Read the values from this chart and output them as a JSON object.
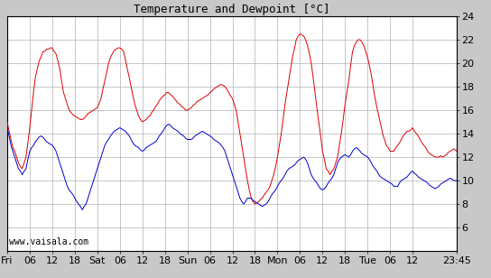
{
  "title": "Temperature and Dewpoint [°C]",
  "watermark": "www.vaisala.com",
  "ylim": [
    4,
    24
  ],
  "yticks": [
    6,
    8,
    10,
    12,
    14,
    16,
    18,
    20,
    22,
    24
  ],
  "x_tick_labels": [
    "Fri",
    "06",
    "12",
    "18",
    "Sat",
    "06",
    "12",
    "18",
    "Sun",
    "06",
    "12",
    "18",
    "Mon",
    "06",
    "12",
    "18",
    "Tue",
    "06",
    "12",
    "23:45"
  ],
  "x_tick_positions": [
    0,
    6,
    12,
    18,
    24,
    30,
    36,
    42,
    48,
    54,
    60,
    66,
    72,
    78,
    84,
    90,
    96,
    102,
    108,
    119.75
  ],
  "x_total_hours": 119.75,
  "plot_bg_color": "#ffffff",
  "fig_bg_color": "#c8c8c8",
  "grid_color": "#b0b0b0",
  "red_color": "#dd0000",
  "blue_color": "#0000cc",
  "title_fontsize": 9,
  "tick_fontsize": 8,
  "watermark_fontsize": 7,
  "red_data": [
    [
      0,
      15.0
    ],
    [
      0.5,
      14.2
    ],
    [
      1,
      13.5
    ],
    [
      1.5,
      12.8
    ],
    [
      2,
      12.5
    ],
    [
      2.5,
      12.0
    ],
    [
      3,
      11.5
    ],
    [
      3.5,
      11.2
    ],
    [
      4,
      11.0
    ],
    [
      4.5,
      11.5
    ],
    [
      5,
      12.0
    ],
    [
      5.5,
      13.2
    ],
    [
      6,
      14.5
    ],
    [
      6.5,
      16.0
    ],
    [
      7,
      17.5
    ],
    [
      7.5,
      18.8
    ],
    [
      8,
      19.5
    ],
    [
      8.5,
      20.2
    ],
    [
      9,
      20.5
    ],
    [
      9.5,
      21.0
    ],
    [
      10,
      21.0
    ],
    [
      10.5,
      21.2
    ],
    [
      11,
      21.2
    ],
    [
      11.5,
      21.3
    ],
    [
      12,
      21.3
    ],
    [
      12.5,
      21.0
    ],
    [
      13,
      20.8
    ],
    [
      13.5,
      20.2
    ],
    [
      14,
      19.5
    ],
    [
      14.5,
      18.5
    ],
    [
      15,
      17.5
    ],
    [
      15.5,
      17.0
    ],
    [
      16,
      16.5
    ],
    [
      16.5,
      16.0
    ],
    [
      17,
      15.8
    ],
    [
      17.5,
      15.6
    ],
    [
      18,
      15.5
    ],
    [
      18.5,
      15.4
    ],
    [
      19,
      15.3
    ],
    [
      19.5,
      15.2
    ],
    [
      20,
      15.2
    ],
    [
      20.5,
      15.3
    ],
    [
      21,
      15.5
    ],
    [
      21.5,
      15.7
    ],
    [
      22,
      15.8
    ],
    [
      22.5,
      15.9
    ],
    [
      23,
      16.0
    ],
    [
      23.5,
      16.1
    ],
    [
      24,
      16.2
    ],
    [
      24.5,
      16.6
    ],
    [
      25,
      17.0
    ],
    [
      25.5,
      17.8
    ],
    [
      26,
      18.5
    ],
    [
      26.5,
      19.2
    ],
    [
      27,
      20.0
    ],
    [
      27.5,
      20.5
    ],
    [
      28,
      20.8
    ],
    [
      28.5,
      21.1
    ],
    [
      29,
      21.2
    ],
    [
      29.5,
      21.3
    ],
    [
      30,
      21.3
    ],
    [
      30.5,
      21.2
    ],
    [
      31,
      21.0
    ],
    [
      31.5,
      20.3
    ],
    [
      32,
      19.5
    ],
    [
      32.5,
      18.8
    ],
    [
      33,
      18.0
    ],
    [
      33.5,
      17.2
    ],
    [
      34,
      16.5
    ],
    [
      34.5,
      16.0
    ],
    [
      35,
      15.5
    ],
    [
      35.5,
      15.2
    ],
    [
      36,
      15.0
    ],
    [
      36.5,
      15.1
    ],
    [
      37,
      15.2
    ],
    [
      37.5,
      15.4
    ],
    [
      38,
      15.5
    ],
    [
      38.5,
      15.8
    ],
    [
      39,
      16.0
    ],
    [
      39.5,
      16.3
    ],
    [
      40,
      16.5
    ],
    [
      40.5,
      16.8
    ],
    [
      41,
      17.0
    ],
    [
      41.5,
      17.2
    ],
    [
      42,
      17.3
    ],
    [
      42.5,
      17.5
    ],
    [
      43,
      17.5
    ],
    [
      43.5,
      17.3
    ],
    [
      44,
      17.2
    ],
    [
      44.5,
      17.0
    ],
    [
      45,
      16.8
    ],
    [
      45.5,
      16.6
    ],
    [
      46,
      16.5
    ],
    [
      46.5,
      16.3
    ],
    [
      47,
      16.2
    ],
    [
      47.5,
      16.0
    ],
    [
      48,
      16.0
    ],
    [
      48.5,
      16.1
    ],
    [
      49,
      16.2
    ],
    [
      49.5,
      16.4
    ],
    [
      50,
      16.5
    ],
    [
      50.5,
      16.7
    ],
    [
      51,
      16.8
    ],
    [
      51.5,
      16.9
    ],
    [
      52,
      17.0
    ],
    [
      52.5,
      17.1
    ],
    [
      53,
      17.2
    ],
    [
      53.5,
      17.3
    ],
    [
      54,
      17.5
    ],
    [
      54.5,
      17.6
    ],
    [
      55,
      17.8
    ],
    [
      55.5,
      17.9
    ],
    [
      56,
      18.0
    ],
    [
      56.5,
      18.1
    ],
    [
      57,
      18.2
    ],
    [
      57.5,
      18.1
    ],
    [
      58,
      18.0
    ],
    [
      58.5,
      17.8
    ],
    [
      59,
      17.5
    ],
    [
      59.5,
      17.2
    ],
    [
      60,
      17.0
    ],
    [
      60.5,
      16.5
    ],
    [
      61,
      16.0
    ],
    [
      61.5,
      15.0
    ],
    [
      62,
      14.0
    ],
    [
      62.5,
      13.0
    ],
    [
      63,
      12.0
    ],
    [
      63.5,
      11.0
    ],
    [
      64,
      10.0
    ],
    [
      64.5,
      9.2
    ],
    [
      65,
      8.5
    ],
    [
      65.5,
      8.2
    ],
    [
      66,
      8.0
    ],
    [
      66.5,
      8.1
    ],
    [
      67,
      8.2
    ],
    [
      67.5,
      8.4
    ],
    [
      68,
      8.5
    ],
    [
      68.5,
      8.8
    ],
    [
      69,
      9.0
    ],
    [
      69.5,
      9.2
    ],
    [
      70,
      9.5
    ],
    [
      70.5,
      10.0
    ],
    [
      71,
      10.5
    ],
    [
      71.5,
      11.2
    ],
    [
      72,
      12.0
    ],
    [
      72.5,
      13.0
    ],
    [
      73,
      14.0
    ],
    [
      73.5,
      15.2
    ],
    [
      74,
      16.5
    ],
    [
      74.5,
      17.5
    ],
    [
      75,
      18.5
    ],
    [
      75.5,
      19.5
    ],
    [
      76,
      20.5
    ],
    [
      76.5,
      21.2
    ],
    [
      77,
      22.0
    ],
    [
      77.5,
      22.3
    ],
    [
      78,
      22.5
    ],
    [
      78.5,
      22.4
    ],
    [
      79,
      22.3
    ],
    [
      79.5,
      22.0
    ],
    [
      80,
      21.5
    ],
    [
      80.5,
      20.8
    ],
    [
      81,
      20.0
    ],
    [
      81.5,
      18.8
    ],
    [
      82,
      17.5
    ],
    [
      82.5,
      16.2
    ],
    [
      83,
      15.0
    ],
    [
      83.5,
      13.8
    ],
    [
      84,
      12.5
    ],
    [
      84.5,
      11.8
    ],
    [
      85,
      11.0
    ],
    [
      85.5,
      10.8
    ],
    [
      86,
      10.5
    ],
    [
      86.5,
      10.8
    ],
    [
      87,
      11.0
    ],
    [
      87.5,
      11.5
    ],
    [
      88,
      12.0
    ],
    [
      88.5,
      13.0
    ],
    [
      89,
      14.0
    ],
    [
      89.5,
      15.2
    ],
    [
      90,
      16.5
    ],
    [
      90.5,
      17.5
    ],
    [
      91,
      18.5
    ],
    [
      91.5,
      19.8
    ],
    [
      92,
      21.0
    ],
    [
      92.5,
      21.5
    ],
    [
      93,
      21.8
    ],
    [
      93.5,
      22.0
    ],
    [
      94,
      22.0
    ],
    [
      94.5,
      21.8
    ],
    [
      95,
      21.5
    ],
    [
      95.5,
      21.0
    ],
    [
      96,
      20.5
    ],
    [
      96.5,
      19.8
    ],
    [
      97,
      19.0
    ],
    [
      97.5,
      18.0
    ],
    [
      98,
      17.0
    ],
    [
      98.5,
      16.2
    ],
    [
      99,
      15.5
    ],
    [
      99.5,
      14.8
    ],
    [
      100,
      14.0
    ],
    [
      100.5,
      13.5
    ],
    [
      101,
      13.0
    ],
    [
      101.5,
      12.8
    ],
    [
      102,
      12.5
    ],
    [
      102.5,
      12.5
    ],
    [
      103,
      12.5
    ],
    [
      103.5,
      12.8
    ],
    [
      104,
      13.0
    ],
    [
      104.5,
      13.2
    ],
    [
      105,
      13.5
    ],
    [
      105.5,
      13.8
    ],
    [
      106,
      14.0
    ],
    [
      106.5,
      14.2
    ],
    [
      107,
      14.2
    ],
    [
      107.5,
      14.3
    ],
    [
      108,
      14.5
    ],
    [
      108.5,
      14.2
    ],
    [
      109,
      14.0
    ],
    [
      109.5,
      13.8
    ],
    [
      110,
      13.5
    ],
    [
      110.5,
      13.2
    ],
    [
      111,
      13.0
    ],
    [
      111.5,
      12.8
    ],
    [
      112,
      12.5
    ],
    [
      112.5,
      12.3
    ],
    [
      113,
      12.2
    ],
    [
      113.5,
      12.1
    ],
    [
      114,
      12.0
    ],
    [
      114.5,
      12.0
    ],
    [
      115,
      12.0
    ],
    [
      115.5,
      12.1
    ],
    [
      116,
      12.0
    ],
    [
      116.5,
      12.1
    ],
    [
      117,
      12.2
    ],
    [
      117.5,
      12.4
    ],
    [
      118,
      12.5
    ],
    [
      118.5,
      12.6
    ],
    [
      119,
      12.7
    ],
    [
      119.75,
      12.5
    ]
  ],
  "blue_data": [
    [
      0,
      14.5
    ],
    [
      0.5,
      13.8
    ],
    [
      1,
      13.0
    ],
    [
      1.5,
      12.5
    ],
    [
      2,
      12.0
    ],
    [
      2.5,
      11.5
    ],
    [
      3,
      11.0
    ],
    [
      3.5,
      10.8
    ],
    [
      4,
      10.5
    ],
    [
      4.5,
      10.8
    ],
    [
      5,
      11.0
    ],
    [
      5.5,
      11.8
    ],
    [
      6,
      12.5
    ],
    [
      6.5,
      12.8
    ],
    [
      7,
      13.0
    ],
    [
      7.5,
      13.3
    ],
    [
      8,
      13.5
    ],
    [
      8.5,
      13.7
    ],
    [
      9,
      13.8
    ],
    [
      9.5,
      13.7
    ],
    [
      10,
      13.5
    ],
    [
      10.5,
      13.3
    ],
    [
      11,
      13.2
    ],
    [
      11.5,
      13.1
    ],
    [
      12,
      13.0
    ],
    [
      12.5,
      12.8
    ],
    [
      13,
      12.5
    ],
    [
      13.5,
      12.0
    ],
    [
      14,
      11.5
    ],
    [
      14.5,
      11.0
    ],
    [
      15,
      10.5
    ],
    [
      15.5,
      10.0
    ],
    [
      16,
      9.5
    ],
    [
      16.5,
      9.2
    ],
    [
      17,
      9.0
    ],
    [
      17.5,
      8.8
    ],
    [
      18,
      8.5
    ],
    [
      18.5,
      8.2
    ],
    [
      19,
      8.0
    ],
    [
      19.5,
      7.8
    ],
    [
      20,
      7.5
    ],
    [
      20.5,
      7.8
    ],
    [
      21,
      8.0
    ],
    [
      21.5,
      8.5
    ],
    [
      22,
      9.0
    ],
    [
      22.5,
      9.5
    ],
    [
      23,
      10.0
    ],
    [
      23.5,
      10.5
    ],
    [
      24,
      11.0
    ],
    [
      24.5,
      11.5
    ],
    [
      25,
      12.0
    ],
    [
      25.5,
      12.5
    ],
    [
      26,
      13.0
    ],
    [
      26.5,
      13.3
    ],
    [
      27,
      13.5
    ],
    [
      27.5,
      13.8
    ],
    [
      28,
      14.0
    ],
    [
      28.5,
      14.2
    ],
    [
      29,
      14.3
    ],
    [
      29.5,
      14.4
    ],
    [
      30,
      14.5
    ],
    [
      30.5,
      14.4
    ],
    [
      31,
      14.3
    ],
    [
      31.5,
      14.2
    ],
    [
      32,
      14.0
    ],
    [
      32.5,
      13.8
    ],
    [
      33,
      13.5
    ],
    [
      33.5,
      13.2
    ],
    [
      34,
      13.0
    ],
    [
      34.5,
      12.9
    ],
    [
      35,
      12.8
    ],
    [
      35.5,
      12.6
    ],
    [
      36,
      12.5
    ],
    [
      36.5,
      12.6
    ],
    [
      37,
      12.8
    ],
    [
      37.5,
      12.9
    ],
    [
      38,
      13.0
    ],
    [
      38.5,
      13.1
    ],
    [
      39,
      13.2
    ],
    [
      39.5,
      13.3
    ],
    [
      40,
      13.5
    ],
    [
      40.5,
      13.8
    ],
    [
      41,
      14.0
    ],
    [
      41.5,
      14.2
    ],
    [
      42,
      14.5
    ],
    [
      42.5,
      14.7
    ],
    [
      43,
      14.8
    ],
    [
      43.5,
      14.7
    ],
    [
      44,
      14.5
    ],
    [
      44.5,
      14.4
    ],
    [
      45,
      14.3
    ],
    [
      45.5,
      14.2
    ],
    [
      46,
      14.0
    ],
    [
      46.5,
      13.9
    ],
    [
      47,
      13.8
    ],
    [
      47.5,
      13.6
    ],
    [
      48,
      13.5
    ],
    [
      48.5,
      13.5
    ],
    [
      49,
      13.5
    ],
    [
      49.5,
      13.6
    ],
    [
      50,
      13.8
    ],
    [
      50.5,
      13.9
    ],
    [
      51,
      14.0
    ],
    [
      51.5,
      14.1
    ],
    [
      52,
      14.2
    ],
    [
      52.5,
      14.1
    ],
    [
      53,
      14.0
    ],
    [
      53.5,
      13.9
    ],
    [
      54,
      13.8
    ],
    [
      54.5,
      13.7
    ],
    [
      55,
      13.5
    ],
    [
      55.5,
      13.4
    ],
    [
      56,
      13.3
    ],
    [
      56.5,
      13.2
    ],
    [
      57,
      13.0
    ],
    [
      57.5,
      12.8
    ],
    [
      58,
      12.5
    ],
    [
      58.5,
      12.0
    ],
    [
      59,
      11.5
    ],
    [
      59.5,
      11.0
    ],
    [
      60,
      10.5
    ],
    [
      60.5,
      10.0
    ],
    [
      61,
      9.5
    ],
    [
      61.5,
      9.0
    ],
    [
      62,
      8.5
    ],
    [
      62.5,
      8.2
    ],
    [
      63,
      8.0
    ],
    [
      63.5,
      8.2
    ],
    [
      64,
      8.5
    ],
    [
      64.5,
      8.5
    ],
    [
      65,
      8.5
    ],
    [
      65.5,
      8.3
    ],
    [
      66,
      8.2
    ],
    [
      66.5,
      8.1
    ],
    [
      67,
      8.0
    ],
    [
      67.5,
      7.9
    ],
    [
      68,
      7.8
    ],
    [
      68.5,
      7.9
    ],
    [
      69,
      8.0
    ],
    [
      69.5,
      8.2
    ],
    [
      70,
      8.5
    ],
    [
      70.5,
      8.8
    ],
    [
      71,
      9.0
    ],
    [
      71.5,
      9.2
    ],
    [
      72,
      9.5
    ],
    [
      72.5,
      9.8
    ],
    [
      73,
      10.0
    ],
    [
      73.5,
      10.2
    ],
    [
      74,
      10.5
    ],
    [
      74.5,
      10.8
    ],
    [
      75,
      11.0
    ],
    [
      75.5,
      11.1
    ],
    [
      76,
      11.2
    ],
    [
      76.5,
      11.3
    ],
    [
      77,
      11.5
    ],
    [
      77.5,
      11.7
    ],
    [
      78,
      11.8
    ],
    [
      78.5,
      11.9
    ],
    [
      79,
      12.0
    ],
    [
      79.5,
      11.8
    ],
    [
      80,
      11.5
    ],
    [
      80.5,
      11.0
    ],
    [
      81,
      10.5
    ],
    [
      81.5,
      10.2
    ],
    [
      82,
      10.0
    ],
    [
      82.5,
      9.8
    ],
    [
      83,
      9.5
    ],
    [
      83.5,
      9.3
    ],
    [
      84,
      9.2
    ],
    [
      84.5,
      9.3
    ],
    [
      85,
      9.5
    ],
    [
      85.5,
      9.8
    ],
    [
      86,
      10.0
    ],
    [
      86.5,
      10.2
    ],
    [
      87,
      10.5
    ],
    [
      87.5,
      11.0
    ],
    [
      88,
      11.5
    ],
    [
      88.5,
      11.8
    ],
    [
      89,
      12.0
    ],
    [
      89.5,
      12.1
    ],
    [
      90,
      12.2
    ],
    [
      90.5,
      12.1
    ],
    [
      91,
      12.0
    ],
    [
      91.5,
      12.2
    ],
    [
      92,
      12.5
    ],
    [
      92.5,
      12.7
    ],
    [
      93,
      12.8
    ],
    [
      93.5,
      12.7
    ],
    [
      94,
      12.5
    ],
    [
      94.5,
      12.3
    ],
    [
      95,
      12.2
    ],
    [
      95.5,
      12.1
    ],
    [
      96,
      12.0
    ],
    [
      96.5,
      11.8
    ],
    [
      97,
      11.5
    ],
    [
      97.5,
      11.2
    ],
    [
      98,
      11.0
    ],
    [
      98.5,
      10.8
    ],
    [
      99,
      10.5
    ],
    [
      99.5,
      10.3
    ],
    [
      100,
      10.2
    ],
    [
      100.5,
      10.1
    ],
    [
      101,
      10.0
    ],
    [
      101.5,
      9.9
    ],
    [
      102,
      9.8
    ],
    [
      102.5,
      9.7
    ],
    [
      103,
      9.5
    ],
    [
      103.5,
      9.5
    ],
    [
      104,
      9.5
    ],
    [
      104.5,
      9.8
    ],
    [
      105,
      10.0
    ],
    [
      105.5,
      10.1
    ],
    [
      106,
      10.2
    ],
    [
      106.5,
      10.3
    ],
    [
      107,
      10.5
    ],
    [
      107.5,
      10.7
    ],
    [
      108,
      10.8
    ],
    [
      108.5,
      10.6
    ],
    [
      109,
      10.5
    ],
    [
      109.5,
      10.3
    ],
    [
      110,
      10.2
    ],
    [
      110.5,
      10.1
    ],
    [
      111,
      10.0
    ],
    [
      111.5,
      9.9
    ],
    [
      112,
      9.8
    ],
    [
      112.5,
      9.6
    ],
    [
      113,
      9.5
    ],
    [
      113.5,
      9.4
    ],
    [
      114,
      9.3
    ],
    [
      114.5,
      9.4
    ],
    [
      115,
      9.5
    ],
    [
      115.5,
      9.7
    ],
    [
      116,
      9.8
    ],
    [
      116.5,
      9.9
    ],
    [
      117,
      10.0
    ],
    [
      117.5,
      10.1
    ],
    [
      118,
      10.2
    ],
    [
      118.5,
      10.1
    ],
    [
      119,
      10.0
    ],
    [
      119.75,
      10.0
    ]
  ]
}
